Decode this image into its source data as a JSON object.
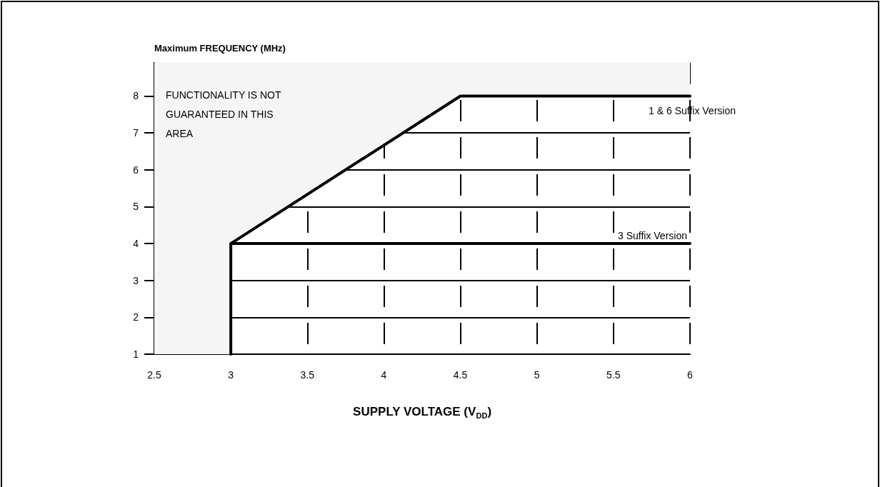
{
  "chart_data": {
    "type": "line",
    "xlabel": "SUPPLY VOLTAGE (V$_{DD}$)",
    "ylabel": "Maximum FREQUENCY (MHz)",
    "annotations": [
      "FUNCTIONALITY IS NOT GUARANTEED IN THIS AREA"
    ],
    "xlim": [
      2.5,
      6
    ],
    "xticks": [
      2.5,
      3,
      3.5,
      4,
      4.5,
      5,
      5.5,
      6
    ],
    "ylim": [
      1,
      8.9
    ],
    "yticks": [
      1,
      2,
      3,
      4,
      5,
      6,
      7,
      8
    ],
    "grid": true,
    "marker": "none",
    "line_style": "solid",
    "series": [
      {
        "name": "1 & 6 Suffix Version",
        "color": "#000000",
        "x": [
          3,
          3,
          4.5,
          6
        ],
        "values": [
          1,
          4,
          8,
          8
        ]
      },
      {
        "name": "3 Suffix Version",
        "color": "#000000",
        "x": [
          3,
          6
        ],
        "values": [
          4,
          4
        ]
      }
    ]
  }
}
